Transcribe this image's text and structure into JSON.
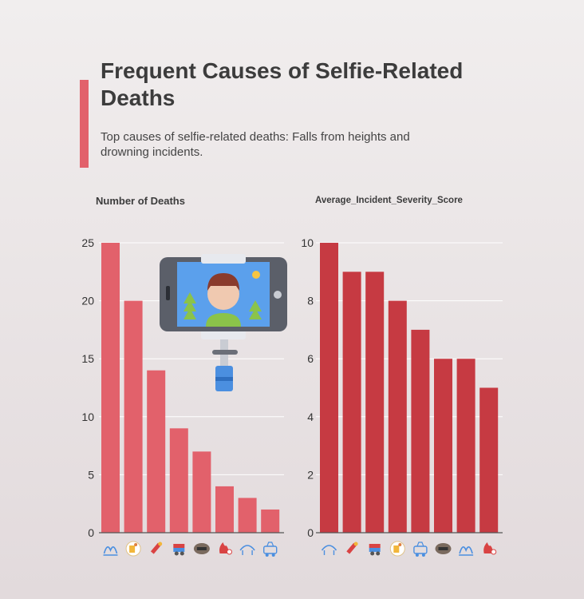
{
  "header": {
    "title": "Frequent Causes of Selfie-Related Deaths",
    "subtitle": "Top causes of selfie-related deaths: Falls from heights and drowning incidents."
  },
  "colors": {
    "accent": "#e2616b",
    "left_bar": "#e2616b",
    "right_bar": "#c63a42",
    "grid": "#ffffff",
    "axis": "#555555"
  },
  "chart_data": [
    {
      "type": "bar",
      "title": "Number of Deaths",
      "categories_icons": [
        "wave-icon",
        "fall-icon",
        "train-icon",
        "animal-icon",
        "vehicle-icon",
        "fire-icon",
        "electricity-icon",
        "weapon-icon"
      ],
      "values": [
        25,
        20,
        14,
        9,
        7,
        4,
        3,
        2
      ],
      "ylim": [
        0,
        25
      ],
      "yticks": [
        0,
        5,
        10,
        15,
        20,
        25
      ],
      "grid": true,
      "color": "#e2616b"
    },
    {
      "type": "bar",
      "title": "Average_Incident_Severity_Score",
      "categories_icons": [
        "electricity-icon",
        "train-icon",
        "animal-icon",
        "fall-icon",
        "weapon-icon",
        "vehicle-icon",
        "wave-icon",
        "fire-icon"
      ],
      "values": [
        10,
        9,
        9,
        8,
        7,
        6,
        6,
        5
      ],
      "ylim": [
        0,
        10
      ],
      "yticks": [
        0,
        2,
        4,
        6,
        8,
        10
      ],
      "grid": true,
      "color": "#c63a42"
    }
  ],
  "illustration": {
    "icon": "selfie-stick-phone-icon"
  }
}
